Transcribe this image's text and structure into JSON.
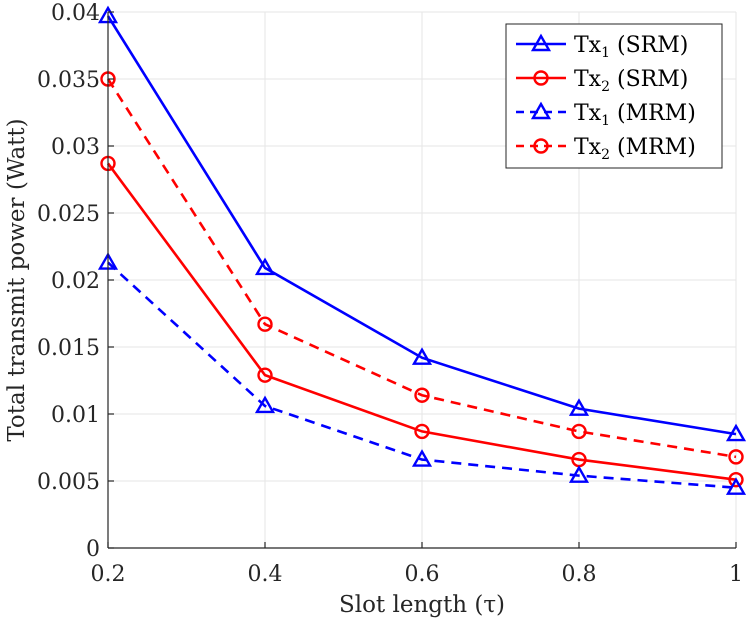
{
  "chart_data": {
    "type": "line",
    "title": "",
    "xlabel": "Slot length (τ)",
    "ylabel": "Total transmit power (Watt)",
    "x": [
      0.2,
      0.4,
      0.6,
      0.8,
      1.0
    ],
    "xlim": [
      0.2,
      1.0
    ],
    "ylim": [
      0,
      0.04
    ],
    "x_ticks": [
      "0.2",
      "0.4",
      "0.6",
      "0.8",
      "1"
    ],
    "y_ticks": [
      "0",
      "0.005",
      "0.01",
      "0.015",
      "0.02",
      "0.025",
      "0.03",
      "0.035",
      "0.04"
    ],
    "x_tick_values": [
      0.2,
      0.4,
      0.6,
      0.8,
      1.0
    ],
    "y_tick_values": [
      0,
      0.005,
      0.01,
      0.015,
      0.02,
      0.025,
      0.03,
      0.035,
      0.04
    ],
    "grid": true,
    "legend_position": "top-right",
    "series": [
      {
        "name": "Tx1 (SRM)",
        "legend_main": "Tx",
        "legend_sub": "1",
        "legend_suffix": " (SRM)",
        "color": "#0000ff",
        "marker": "triangle",
        "dash": "solid",
        "values": [
          0.0397,
          0.0209,
          0.0142,
          0.0104,
          0.0085
        ]
      },
      {
        "name": "Tx2 (SRM)",
        "legend_main": "Tx",
        "legend_sub": "2",
        "legend_suffix": " (SRM)",
        "color": "#ff0000",
        "marker": "circle",
        "dash": "solid",
        "values": [
          0.0287,
          0.0129,
          0.0087,
          0.0066,
          0.0051
        ]
      },
      {
        "name": "Tx1 (MRM)",
        "legend_main": "Tx",
        "legend_sub": "1",
        "legend_suffix": " (MRM)",
        "color": "#0000ff",
        "marker": "triangle",
        "dash": "dashed",
        "values": [
          0.0213,
          0.0106,
          0.0066,
          0.0054,
          0.0045
        ]
      },
      {
        "name": "Tx2 (MRM)",
        "legend_main": "Tx",
        "legend_sub": "2",
        "legend_suffix": " (MRM)",
        "color": "#ff0000",
        "marker": "circle",
        "dash": "dashed",
        "values": [
          0.035,
          0.0167,
          0.0114,
          0.0087,
          0.0068
        ]
      }
    ]
  }
}
